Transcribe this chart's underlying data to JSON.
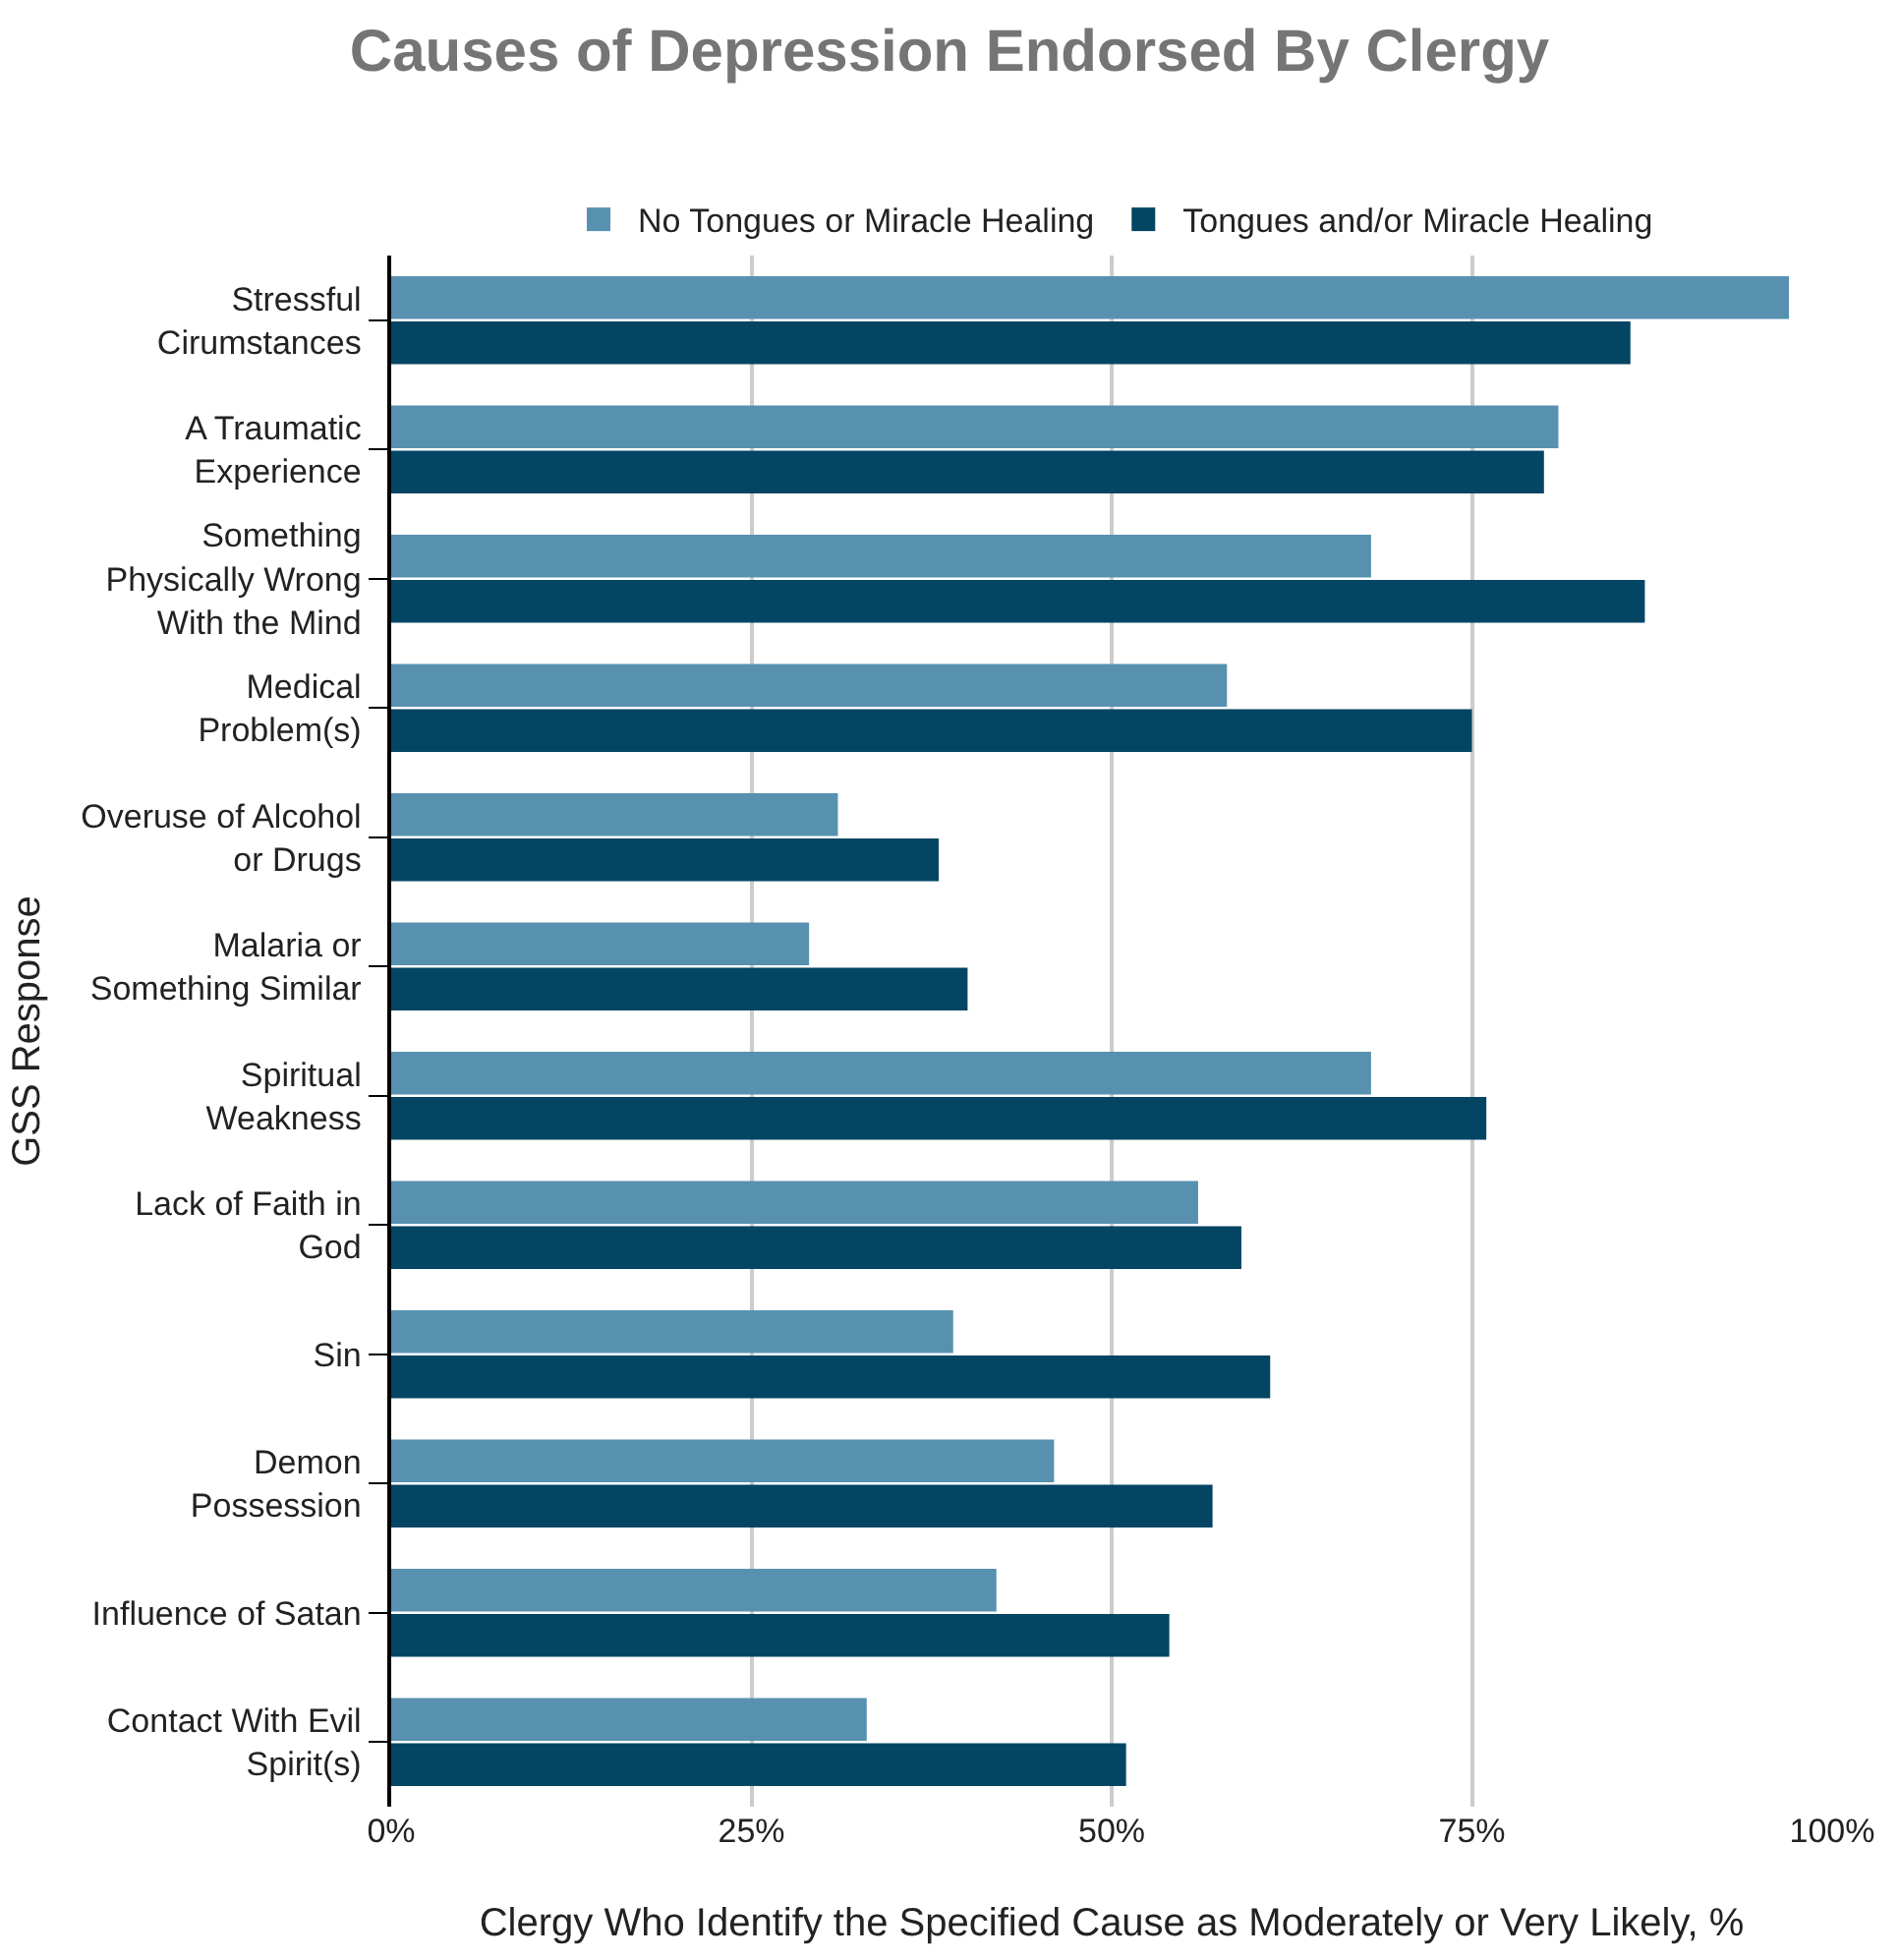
{
  "chart_data": {
    "type": "bar",
    "orientation": "horizontal",
    "title": "Causes of Depression Endorsed By Clergy",
    "xlabel": "Clergy Who Identify the Specified Cause as Moderately or Very Likely, %",
    "ylabel": "GSS Response",
    "categories": [
      "Stressful\nCirumstances",
      "A Traumatic\nExperience",
      "Something\nPhysically Wrong\nWith the Mind",
      "Medical\nProblem(s)",
      "Overuse of Alcohol\nor Drugs",
      "Malaria or\nSomething Similar",
      "Spiritual\nWeakness",
      "Lack of Faith in\nGod",
      "Sin",
      "Demon\nPossession",
      "Influence of Satan",
      "Contact With Evil\nSpirit(s)"
    ],
    "series": [
      {
        "name": "No Tongues or Miracle Healing",
        "color": "#5891b0",
        "values": [
          97,
          81,
          68,
          58,
          31,
          29,
          68,
          56,
          39,
          46,
          42,
          33
        ]
      },
      {
        "name": "Tongues and/or Miracle Healing",
        "color": "#034563",
        "values": [
          86,
          80,
          87,
          75,
          38,
          40,
          76,
          59,
          61,
          57,
          54,
          51
        ]
      }
    ],
    "xlim": [
      0,
      100
    ],
    "xticks": [
      {
        "value": 0,
        "label": "0%"
      },
      {
        "value": 25,
        "label": "25%"
      },
      {
        "value": 50,
        "label": "50%"
      },
      {
        "value": 75,
        "label": "75%"
      },
      {
        "value": 100,
        "label": "100%"
      }
    ],
    "grid": "x",
    "legend": "top"
  }
}
